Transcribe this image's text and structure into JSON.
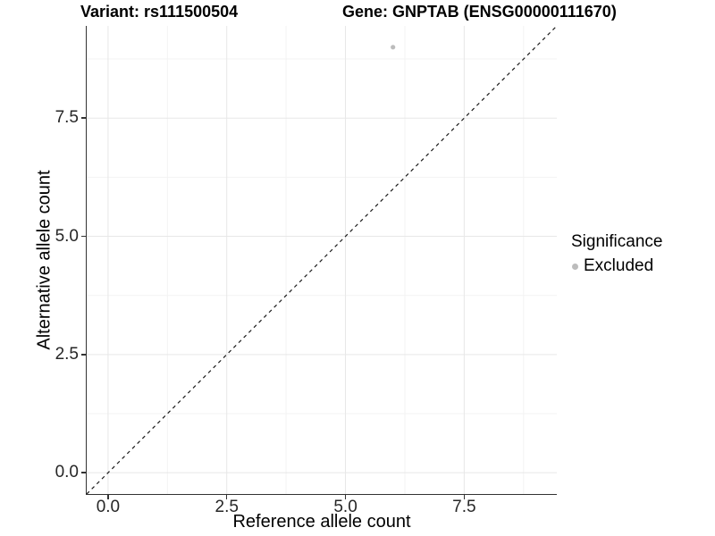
{
  "figure": {
    "title_left": "Variant: rs111500504",
    "title_right": "Gene: GNPTAB (ENSG00000111670)"
  },
  "axes": {
    "x": {
      "label": "Reference allele count"
    },
    "y": {
      "label": "Alternative allele count"
    }
  },
  "legend": {
    "title": "Significance",
    "items": [
      {
        "label": "Excluded",
        "color": "#bcbcbc"
      }
    ]
  },
  "chart_data": {
    "type": "scatter",
    "title": "Variant: rs111500504   Gene: GNPTAB (ENSG00000111670)",
    "xlabel": "Reference allele count",
    "ylabel": "Alternative allele count",
    "xlim": [
      -0.45,
      9.45
    ],
    "ylim": [
      -0.45,
      9.45
    ],
    "x_ticks": [
      0,
      2.5,
      5,
      7.5
    ],
    "y_ticks": [
      0,
      2.5,
      5,
      7.5
    ],
    "x_tick_labels": [
      "0.0",
      "2.5",
      "5.0",
      "7.5"
    ],
    "y_tick_labels": [
      "0.0",
      "2.5",
      "5.0",
      "7.5"
    ],
    "x_minor_ticks": [
      1.25,
      3.75,
      6.25,
      8.75
    ],
    "y_minor_ticks": [
      1.25,
      3.75,
      6.25,
      8.75
    ],
    "grid": true,
    "legend_position": "right",
    "series": [
      {
        "name": "Excluded",
        "color": "#bcbcbc",
        "points": [
          {
            "x": 6,
            "y": 9
          }
        ]
      }
    ],
    "reference_line": {
      "type": "identity y=x",
      "style": "dashed",
      "color": "#1a1a1a",
      "from": [
        -0.45,
        -0.45
      ],
      "to": [
        9.45,
        9.45
      ]
    },
    "colors": {
      "background": "#ffffff",
      "grid_major": "#e7e7e7",
      "grid_minor": "#f3f3f3",
      "axis_line": "#333333",
      "tick_text": "#262626",
      "point": "#bcbcbc"
    }
  }
}
